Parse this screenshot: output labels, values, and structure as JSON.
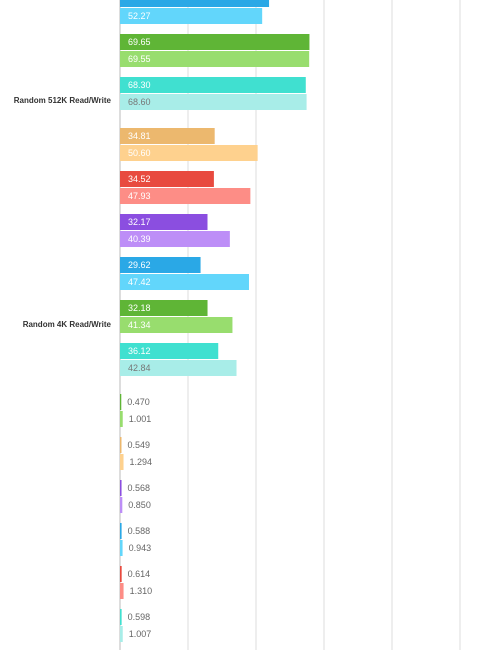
{
  "chart_data": {
    "type": "bar",
    "orientation": "horizontal",
    "xlim": [
      0,
      125
    ],
    "xticks": [
      0,
      25,
      50,
      75,
      100,
      125
    ],
    "grid": true,
    "categories": [
      "Random 512K Read/Write",
      "Random 4K Read/Write"
    ],
    "bars": [
      {
        "colors": [
          "#2aa8e6",
          "#62d6fb"
        ],
        "values": [
          54.8,
          52.27
        ],
        "value_labels": [
          null,
          "52.27"
        ]
      },
      {
        "colors": [
          "#5fb536",
          "#98dd6e"
        ],
        "values": [
          69.65,
          69.55
        ],
        "value_labels": [
          "69.65",
          "69.55"
        ]
      },
      {
        "colors": [
          "#40e0d0",
          "#a8ede8"
        ],
        "values": [
          68.3,
          68.6
        ],
        "value_labels": [
          "68.30",
          "68.60"
        ]
      },
      {
        "colors": [
          "#ecb86e",
          "#fed18e"
        ],
        "values": [
          34.81,
          50.6
        ],
        "value_labels": [
          "34.81",
          "50.60"
        ]
      },
      {
        "colors": [
          "#e84a3f",
          "#fd8d86"
        ],
        "values": [
          34.52,
          47.93
        ],
        "value_labels": [
          "34.52",
          "47.93"
        ]
      },
      {
        "colors": [
          "#8b4ee0",
          "#bd8ef7"
        ],
        "values": [
          32.17,
          40.39
        ],
        "value_labels": [
          "32.17",
          "40.39"
        ]
      },
      {
        "colors": [
          "#2aa8e6",
          "#62d6fb"
        ],
        "values": [
          29.62,
          47.42
        ],
        "value_labels": [
          "29.62",
          "47.42"
        ]
      },
      {
        "colors": [
          "#5fb536",
          "#98dd6e"
        ],
        "values": [
          32.18,
          41.34
        ],
        "value_labels": [
          "32.18",
          "41.34"
        ]
      },
      {
        "colors": [
          "#40e0d0",
          "#a8ede8"
        ],
        "values": [
          36.12,
          42.84
        ],
        "value_labels": [
          "36.12",
          "42.84"
        ]
      },
      {
        "colors": [
          "#5fb536",
          "#98dd6e"
        ],
        "values": [
          0.47,
          1.001
        ],
        "value_labels": [
          "0.470",
          "1.001"
        ]
      },
      {
        "colors": [
          "#ecb86e",
          "#fed18e"
        ],
        "values": [
          0.549,
          1.294
        ],
        "value_labels": [
          "0.549",
          "1.294"
        ]
      },
      {
        "colors": [
          "#8b4ee0",
          "#bd8ef7"
        ],
        "values": [
          0.568,
          0.85
        ],
        "value_labels": [
          "0.568",
          "0.850"
        ]
      },
      {
        "colors": [
          "#2aa8e6",
          "#62d6fb"
        ],
        "values": [
          0.588,
          0.943
        ],
        "value_labels": [
          "0.588",
          "0.943"
        ]
      },
      {
        "colors": [
          "#e84a3f",
          "#fd8d86"
        ],
        "values": [
          0.614,
          1.31
        ],
        "value_labels": [
          "0.614",
          "1.310"
        ]
      },
      {
        "colors": [
          "#40e0d0",
          "#a8ede8"
        ],
        "values": [
          0.598,
          1.007
        ],
        "value_labels": [
          "0.598",
          "1.007"
        ]
      }
    ]
  }
}
